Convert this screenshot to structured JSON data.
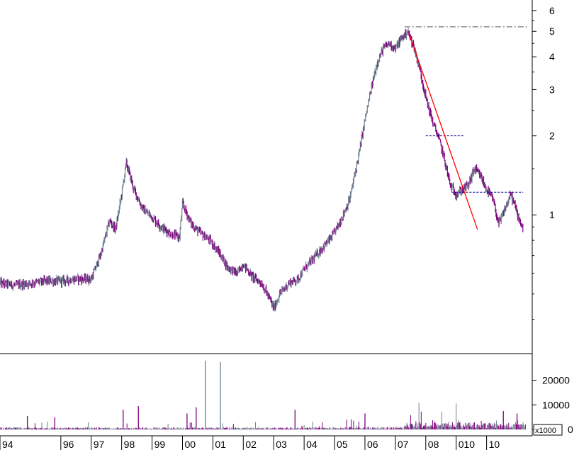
{
  "chart_data": [
    {
      "type": "line",
      "title": "",
      "xlabel": "",
      "ylabel": "",
      "scale": "log",
      "ylim": [
        0.3,
        6.5
      ],
      "x_range": [
        1994.0,
        2011.5
      ],
      "y_ticks": [
        {
          "value": 6,
          "label": "6"
        },
        {
          "value": 5,
          "label": "5"
        },
        {
          "value": 4,
          "label": "4"
        },
        {
          "value": 3,
          "label": "3"
        },
        {
          "value": 2,
          "label": "2"
        },
        {
          "value": 1,
          "label": "1"
        }
      ],
      "x_ticks": [
        {
          "value": 1994.0,
          "label": "94"
        },
        {
          "value": 1996.0,
          "label": "96"
        },
        {
          "value": 1997.0,
          "label": "97"
        },
        {
          "value": 1998.0,
          "label": "98"
        },
        {
          "value": 1999.0,
          "label": "99"
        },
        {
          "value": 2000.0,
          "label": "00"
        },
        {
          "value": 2001.0,
          "label": "01"
        },
        {
          "value": 2002.0,
          "label": "02"
        },
        {
          "value": 2003.0,
          "label": "03"
        },
        {
          "value": 2004.0,
          "label": "04"
        },
        {
          "value": 2005.0,
          "label": "05"
        },
        {
          "value": 2006.0,
          "label": "06"
        },
        {
          "value": 2007.0,
          "label": "07"
        },
        {
          "value": 2008.0,
          "label": "08"
        },
        {
          "value": 2009.0,
          "label": "010"
        },
        {
          "value": 2010.0,
          "label": "10"
        }
      ],
      "colors": {
        "up": "#708090",
        "down": "#800080",
        "trend": "#ff0000",
        "level": "#00008b",
        "peak": "#555555"
      },
      "series": [
        {
          "x": [
            1994.0,
            1994.5,
            1995.0,
            1995.5,
            1996.0,
            1996.5,
            1997.0,
            1997.3,
            1997.6,
            1997.8,
            1998.0,
            1998.15,
            1998.4,
            1998.7,
            1999.0,
            1999.3,
            1999.6,
            1999.9,
            2000.0,
            2000.3,
            2000.6,
            2000.9,
            2001.2,
            2001.5,
            2001.8,
            2002.0,
            2002.3,
            2002.6,
            2002.9,
            2003.0,
            2003.2,
            2003.5,
            2003.8,
            2004.0,
            2004.3,
            2004.6,
            2004.9,
            2005.2,
            2005.5,
            2005.8,
            2006.0,
            2006.2,
            2006.4,
            2006.6,
            2006.8,
            2007.0,
            2007.2,
            2007.4,
            2007.6,
            2007.8,
            2008.0,
            2008.2,
            2008.4,
            2008.6,
            2008.8,
            2009.0,
            2009.2,
            2009.4,
            2009.6,
            2009.8,
            2010.0,
            2010.2,
            2010.4,
            2010.6,
            2010.8,
            2011.0,
            2011.2
          ],
          "y": [
            0.55,
            0.54,
            0.55,
            0.56,
            0.56,
            0.57,
            0.57,
            0.7,
            0.95,
            0.88,
            1.2,
            1.58,
            1.25,
            1.05,
            0.98,
            0.9,
            0.85,
            0.82,
            1.1,
            0.92,
            0.85,
            0.8,
            0.72,
            0.63,
            0.6,
            0.65,
            0.58,
            0.55,
            0.47,
            0.44,
            0.5,
            0.55,
            0.57,
            0.62,
            0.68,
            0.75,
            0.82,
            0.95,
            1.15,
            1.7,
            2.3,
            3.0,
            3.8,
            4.3,
            4.5,
            4.3,
            4.7,
            5.0,
            4.4,
            3.6,
            2.8,
            2.3,
            2.0,
            1.65,
            1.3,
            1.2,
            1.25,
            1.3,
            1.5,
            1.4,
            1.25,
            1.15,
            0.92,
            1.05,
            1.2,
            1.02,
            0.88
          ]
        }
      ],
      "annotations": {
        "peak_level": 5.2,
        "support_level": 2.0,
        "resistance_level": 1.22,
        "trendline": {
          "from": {
            "x": 2007.45,
            "y": 4.9
          },
          "to": {
            "x": 2009.7,
            "y": 0.88
          }
        }
      }
    },
    {
      "type": "bar",
      "title": "",
      "ylabel": "",
      "unit_label": "x1000",
      "ylim": [
        0,
        30000
      ],
      "y_ticks": [
        {
          "value": 20000,
          "label": "20000"
        },
        {
          "value": 10000,
          "label": "10000"
        },
        {
          "value": 0,
          "label": "0"
        }
      ],
      "baseline": 500,
      "spikes": [
        {
          "x": 2000.75,
          "value": 28000
        },
        {
          "x": 2001.25,
          "value": 27500
        },
        {
          "x": 2000.45,
          "value": 9000
        },
        {
          "x": 2000.15,
          "value": 6500
        },
        {
          "x": 1998.55,
          "value": 9500
        },
        {
          "x": 1998.05,
          "value": 8000
        },
        {
          "x": 2003.7,
          "value": 8000
        },
        {
          "x": 2006.0,
          "value": 6500
        },
        {
          "x": 2010.55,
          "value": 7500
        },
        {
          "x": 1994.9,
          "value": 5500
        },
        {
          "x": 1995.8,
          "value": 5000
        },
        {
          "x": 2011.0,
          "value": 6500
        }
      ]
    }
  ]
}
